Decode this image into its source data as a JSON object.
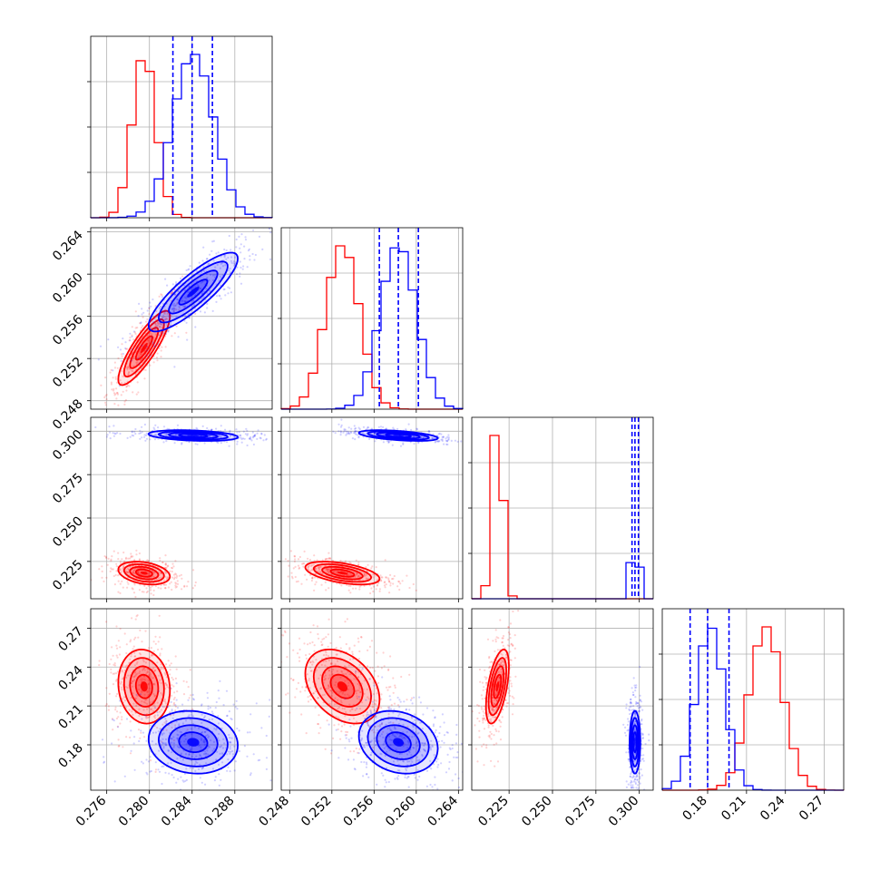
{
  "chart_data": {
    "type": "corner",
    "series": [
      {
        "name": "",
        "color": "#ff0000"
      },
      {
        "name": "",
        "color": "#0000ff"
      }
    ],
    "parameters": [
      {
        "range": [
          0.2745,
          0.2915
        ],
        "ticks": [
          0.276,
          0.28,
          0.284,
          0.288
        ],
        "ticklabels": [
          "0.276",
          "0.280",
          "0.284",
          "0.288"
        ]
      },
      {
        "range": [
          0.2472,
          0.2644
        ],
        "ticks": [
          0.248,
          0.252,
          0.256,
          0.26,
          0.264
        ],
        "ticklabels": [
          "0.248",
          "0.252",
          "0.256",
          "0.260",
          "0.264"
        ]
      },
      {
        "range": [
          0.2035,
          0.308
        ],
        "ticks": [
          0.225,
          0.25,
          0.275,
          0.3
        ],
        "ticklabels": [
          "0.225",
          "0.250",
          "0.275",
          "0.300"
        ]
      },
      {
        "range": [
          0.145,
          0.285
        ],
        "ticks": [
          0.18,
          0.21,
          0.24,
          0.27
        ],
        "ticklabels": [
          "0.18",
          "0.21",
          "0.24",
          "0.27"
        ]
      }
    ],
    "quantiles_blue": [
      [
        0.2822,
        0.284,
        0.2859
      ],
      [
        0.2565,
        0.2583,
        0.2602
      ],
      [
        0.2958,
        0.2975,
        0.2995
      ],
      [
        0.1665,
        0.18,
        0.1965
      ]
    ],
    "marginals": [
      {
        "red": {
          "mean": 0.2795,
          "sd": 0.0011
        },
        "blue": {
          "mean": 0.2841,
          "sd": 0.0019
        }
      },
      {
        "red": {
          "mean": 0.253,
          "sd": 0.0016
        },
        "blue": {
          "mean": 0.2583,
          "sd": 0.0017
        }
      },
      {
        "red": {
          "mean": 0.2183,
          "sd": 0.003
        },
        "blue": {
          "mean": 0.2975,
          "sd": 0.0014
        }
      },
      {
        "red": {
          "mean": 0.225,
          "sd": 0.013
        },
        "blue": {
          "mean": 0.182,
          "sd": 0.011
        }
      }
    ],
    "joint": [
      {
        "x": 0,
        "y": 1,
        "red": {
          "center": [
            0.2795,
            0.253
          ],
          "sd": [
            0.0011,
            0.0016
          ],
          "rho": 0.85
        },
        "blue": {
          "center": [
            0.2841,
            0.2583
          ],
          "sd": [
            0.0019,
            0.0017
          ],
          "rho": 0.85
        }
      },
      {
        "x": 0,
        "y": 2,
        "red": {
          "center": [
            0.2795,
            0.2183
          ],
          "sd": [
            0.0011,
            0.003
          ],
          "rho": -0.3
        },
        "blue": {
          "center": [
            0.2841,
            0.2975
          ],
          "sd": [
            0.0019,
            0.0014
          ],
          "rho": -0.3
        }
      },
      {
        "x": 1,
        "y": 2,
        "red": {
          "center": [
            0.253,
            0.2183
          ],
          "sd": [
            0.0016,
            0.003
          ],
          "rho": -0.5
        },
        "blue": {
          "center": [
            0.2583,
            0.2975
          ],
          "sd": [
            0.0017,
            0.0014
          ],
          "rho": -0.5
        }
      },
      {
        "x": 0,
        "y": 3,
        "red": {
          "center": [
            0.2795,
            0.225
          ],
          "sd": [
            0.0011,
            0.013
          ],
          "rho": -0.1
        },
        "blue": {
          "center": [
            0.2841,
            0.182
          ],
          "sd": [
            0.0019,
            0.011
          ],
          "rho": -0.1
        }
      },
      {
        "x": 1,
        "y": 3,
        "red": {
          "center": [
            0.253,
            0.225
          ],
          "sd": [
            0.0016,
            0.013
          ],
          "rho": -0.35
        },
        "blue": {
          "center": [
            0.2583,
            0.182
          ],
          "sd": [
            0.0017,
            0.011
          ],
          "rho": -0.2
        }
      },
      {
        "x": 2,
        "y": 3,
        "red": {
          "center": [
            0.2183,
            0.225
          ],
          "sd": [
            0.003,
            0.013
          ],
          "rho": 0.55
        },
        "blue": {
          "center": [
            0.2975,
            0.182
          ],
          "sd": [
            0.0014,
            0.011
          ],
          "rho": 0.0
        }
      }
    ],
    "grid": true
  }
}
